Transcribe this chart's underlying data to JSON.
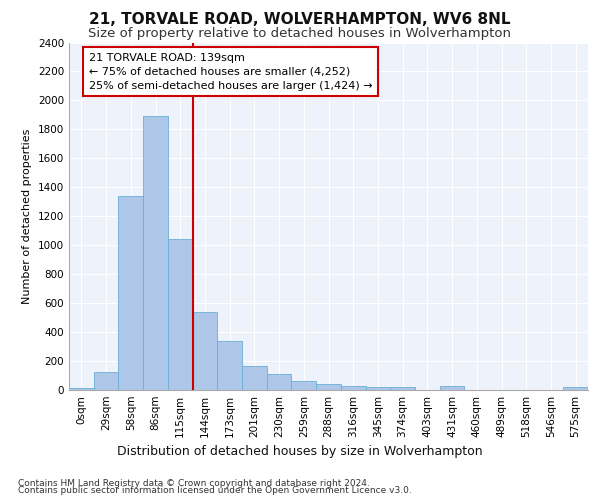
{
  "title": "21, TORVALE ROAD, WOLVERHAMPTON, WV6 8NL",
  "subtitle": "Size of property relative to detached houses in Wolverhampton",
  "xlabel": "Distribution of detached houses by size in Wolverhampton",
  "ylabel": "Number of detached properties",
  "bar_labels": [
    "0sqm",
    "29sqm",
    "58sqm",
    "86sqm",
    "115sqm",
    "144sqm",
    "173sqm",
    "201sqm",
    "230sqm",
    "259sqm",
    "288sqm",
    "316sqm",
    "345sqm",
    "374sqm",
    "403sqm",
    "431sqm",
    "460sqm",
    "489sqm",
    "518sqm",
    "546sqm",
    "575sqm"
  ],
  "bar_values": [
    15,
    125,
    1340,
    1890,
    1040,
    540,
    335,
    165,
    110,
    62,
    38,
    28,
    22,
    18,
    0,
    25,
    0,
    0,
    0,
    0,
    18
  ],
  "bar_color": "#aec6e8",
  "bar_edge_color": "#6aafd6",
  "vline_x": 4.5,
  "vline_color": "#cc0000",
  "annotation_text": "21 TORVALE ROAD: 139sqm\n← 75% of detached houses are smaller (4,252)\n25% of semi-detached houses are larger (1,424) →",
  "annotation_box_color": "#ffffff",
  "annotation_box_edge": "#cc0000",
  "ylim": [
    0,
    2400
  ],
  "yticks": [
    0,
    200,
    400,
    600,
    800,
    1000,
    1200,
    1400,
    1600,
    1800,
    2000,
    2200,
    2400
  ],
  "bg_color": "#eef2fa",
  "footer1": "Contains HM Land Registry data © Crown copyright and database right 2024.",
  "footer2": "Contains public sector information licensed under the Open Government Licence v3.0.",
  "title_fontsize": 11,
  "subtitle_fontsize": 9.5,
  "annotation_fontsize": 8,
  "ylabel_fontsize": 8,
  "xlabel_fontsize": 9,
  "tick_fontsize": 7.5,
  "footer_fontsize": 6.5
}
